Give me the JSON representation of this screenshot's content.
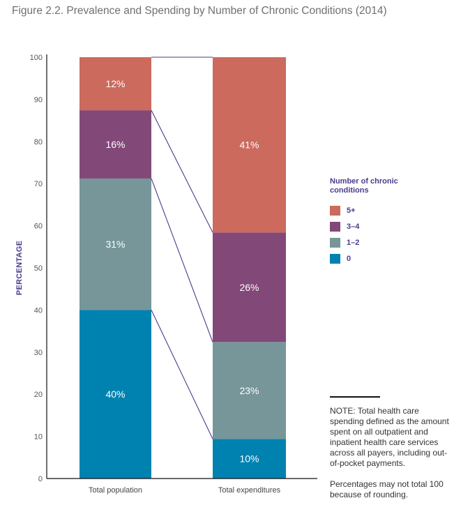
{
  "title": "Figure 2.2. Prevalence and Spending by Number of Chronic Conditions (2014)",
  "chart_data": {
    "type": "bar",
    "stacked": true,
    "title": "Figure 2.2. Prevalence and Spending by Number of Chronic Conditions (2014)",
    "xlabel": "",
    "ylabel": "PERCENTAGE",
    "ylim": [
      0,
      100
    ],
    "yticks": [
      0,
      10,
      20,
      30,
      40,
      50,
      60,
      70,
      80,
      90,
      100
    ],
    "grid": false,
    "categories": [
      "Total population",
      "Total expenditures"
    ],
    "series": [
      {
        "name": "0",
        "color": "#0082B0",
        "values": [
          40,
          10
        ],
        "labels": [
          "40%",
          "10%"
        ],
        "extent": [
          40,
          9.4
        ]
      },
      {
        "name": "1–2",
        "color": "#76969A",
        "values": [
          31,
          23
        ],
        "labels": [
          "31%",
          "23%"
        ],
        "extent": [
          31.2,
          23
        ]
      },
      {
        "name": "3–4",
        "color": "#824878",
        "values": [
          16,
          26
        ],
        "labels": [
          "16%",
          "26%"
        ],
        "extent": [
          16.2,
          26
        ]
      },
      {
        "name": "5+",
        "color": "#CC6A5E",
        "values": [
          12,
          41
        ],
        "labels": [
          "12%",
          "41%"
        ],
        "extent": [
          12.6,
          41.6
        ]
      }
    ],
    "connector_color": "#4b3a8c",
    "legend": {
      "title": "Number of chronic conditions",
      "placement": "right",
      "items": [
        "5+",
        "3–4",
        "1–2",
        "0"
      ]
    },
    "notes": [
      "NOTE: Total health care spending defined as the amount spent on all outpatient and inpatient health care services across all payers, including out-of-pocket payments.",
      "Percentages may not total 100 because of rounding."
    ]
  }
}
